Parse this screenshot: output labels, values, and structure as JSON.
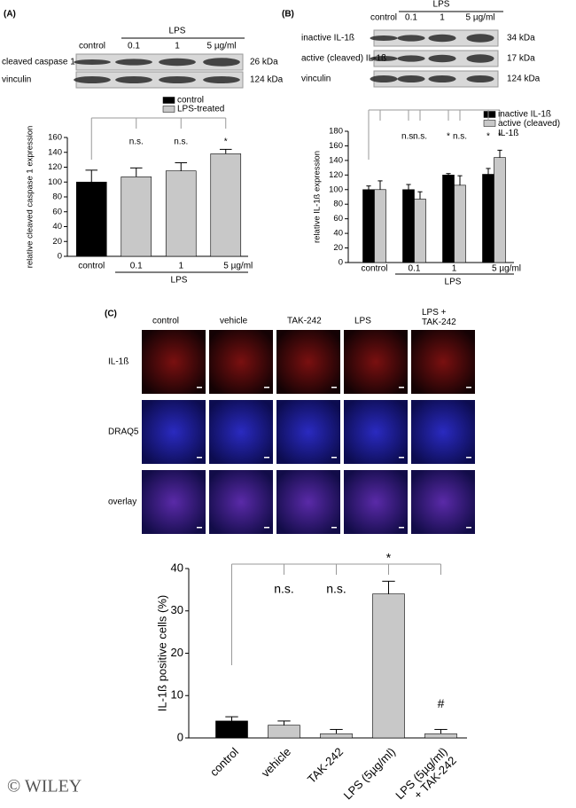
{
  "panels": [
    "(A)",
    "(B)",
    "(C)"
  ],
  "blot_a": {
    "treatment": "LPS",
    "lanes": [
      "control",
      "0.1",
      "1",
      "5 µg/ml"
    ],
    "rows": [
      {
        "label": "cleaved caspase 1",
        "size": "26 kDa"
      },
      {
        "label": "vinculin",
        "size": "124 kDa"
      }
    ]
  },
  "blot_b": {
    "treatment": "LPS",
    "lanes": [
      "control",
      "0.1",
      "1",
      "5 µg/ml"
    ],
    "rows": [
      {
        "label": "inactive IL-1ß",
        "size": "34 kDa"
      },
      {
        "label": "active (cleaved) IL-1ß",
        "size": "17 kDa"
      },
      {
        "label": "vinculin",
        "size": "124 kDa"
      }
    ]
  },
  "microscopy": {
    "columns": [
      "control",
      "vehicle",
      "TAK-242",
      "LPS",
      "LPS + TAK-242"
    ],
    "rows": [
      "IL-1ß",
      "DRAQ5",
      "overlay"
    ]
  },
  "copyright": "© WILEY",
  "chart_data": [
    {
      "type": "bar",
      "barmode": "overlay",
      "categories": [
        "control",
        "0.1",
        "1",
        "5 µg/ml"
      ],
      "x_label": "LPS",
      "y_label": "relative cleaved caspase 1 expression",
      "series": [
        {
          "name": "control",
          "color": "#000000",
          "values": [
            100,
            null,
            null,
            null
          ],
          "errors": [
            16,
            null,
            null,
            null
          ]
        },
        {
          "name": "LPS-treated",
          "color": "#c8c8c8",
          "values": [
            null,
            107,
            115,
            138
          ],
          "errors": [
            null,
            12,
            11,
            6
          ]
        }
      ],
      "annotations": [
        null,
        "n.s.",
        "n.s.",
        "*"
      ],
      "ylim": [
        0,
        160
      ],
      "yticks": [
        0,
        20,
        40,
        60,
        80,
        100,
        120,
        140,
        160
      ]
    },
    {
      "type": "bar",
      "barmode": "group",
      "categories": [
        "control",
        "0.1",
        "1",
        "5 µg/ml"
      ],
      "x_label": "LPS",
      "y_label": "relative IL-1ß expression",
      "series": [
        {
          "name": "inactive IL-1ß",
          "color": "#000000",
          "values": [
            100,
            100,
            120,
            121
          ],
          "errors": [
            5,
            7,
            2,
            8
          ],
          "annotations": [
            null,
            "n.s.",
            "*",
            "*"
          ]
        },
        {
          "name": "active (cleaved) IL-1ß",
          "color": "#c8c8c8",
          "values": [
            100,
            87,
            106,
            144
          ],
          "errors": [
            12,
            10,
            13,
            10
          ],
          "annotations": [
            null,
            "n.s.",
            "n.s.",
            "*"
          ]
        }
      ],
      "ylim": [
        0,
        180
      ],
      "yticks": [
        0,
        20,
        40,
        60,
        80,
        100,
        120,
        140,
        160,
        180
      ]
    },
    {
      "type": "bar",
      "categories": [
        "control",
        "vehicle",
        "TAK-242",
        "LPS (5µg/ml)",
        "LPS (5µg/ml) + TAK-242"
      ],
      "y_label": "IL-1ß positive cells (%)",
      "values": [
        4,
        3,
        1,
        34,
        1
      ],
      "errors": [
        1,
        1,
        1,
        3,
        1
      ],
      "colors": [
        "#000000",
        "#c8c8c8",
        "#c8c8c8",
        "#c8c8c8",
        "#c8c8c8"
      ],
      "annotations": [
        null,
        "n.s.",
        "n.s.",
        "*",
        "#"
      ],
      "ylim": [
        0,
        40
      ],
      "yticks": [
        0,
        10,
        20,
        30,
        40
      ]
    }
  ]
}
